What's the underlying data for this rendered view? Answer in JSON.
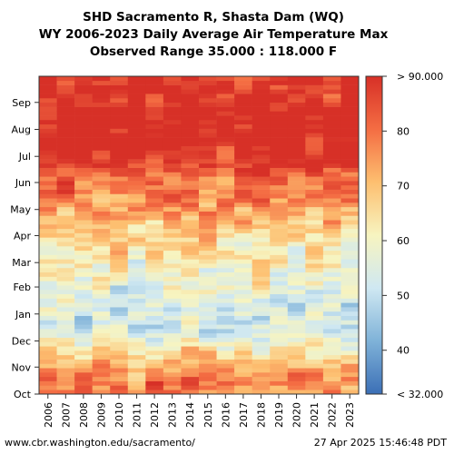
{
  "title_lines": [
    "SHD Sacramento R, Shasta Dam (WQ)",
    "WY 2006-2023 Daily Average Air Temperature Max",
    "Observed Range 35.000 : 118.000 F"
  ],
  "footer": {
    "left": "www.cbr.washington.edu/sacramento/",
    "right": "27 Apr 2025 15:46:48 PDT"
  },
  "chart_data": {
    "type": "heatmap",
    "title": "WY 2006-2023 Daily Average Air Temperature Max",
    "x": [
      "2006",
      "2007",
      "2008",
      "2009",
      "2010",
      "2011",
      "2012",
      "2013",
      "2014",
      "2015",
      "2016",
      "2017",
      "2018",
      "2019",
      "2020",
      "2021",
      "2022",
      "2023"
    ],
    "y_months": [
      "Oct",
      "Nov",
      "Dec",
      "Jan",
      "Feb",
      "Mar",
      "Apr",
      "May",
      "Jun",
      "Jul",
      "Aug",
      "Sep"
    ],
    "monthly_mean_F": [
      78,
      64,
      55,
      54,
      59,
      63,
      69,
      77,
      86,
      95,
      94,
      90
    ],
    "colorbar": {
      "min": 32,
      "max": 90,
      "min_label": "< 32.000",
      "max_label": "> 90.000",
      "ticks": [
        40,
        50,
        60,
        70,
        80
      ],
      "colors": [
        "#3b6fb6",
        "#7fb2d8",
        "#cfe8f2",
        "#f7f4c0",
        "#fdbf70",
        "#f46d43",
        "#d73027"
      ]
    }
  }
}
